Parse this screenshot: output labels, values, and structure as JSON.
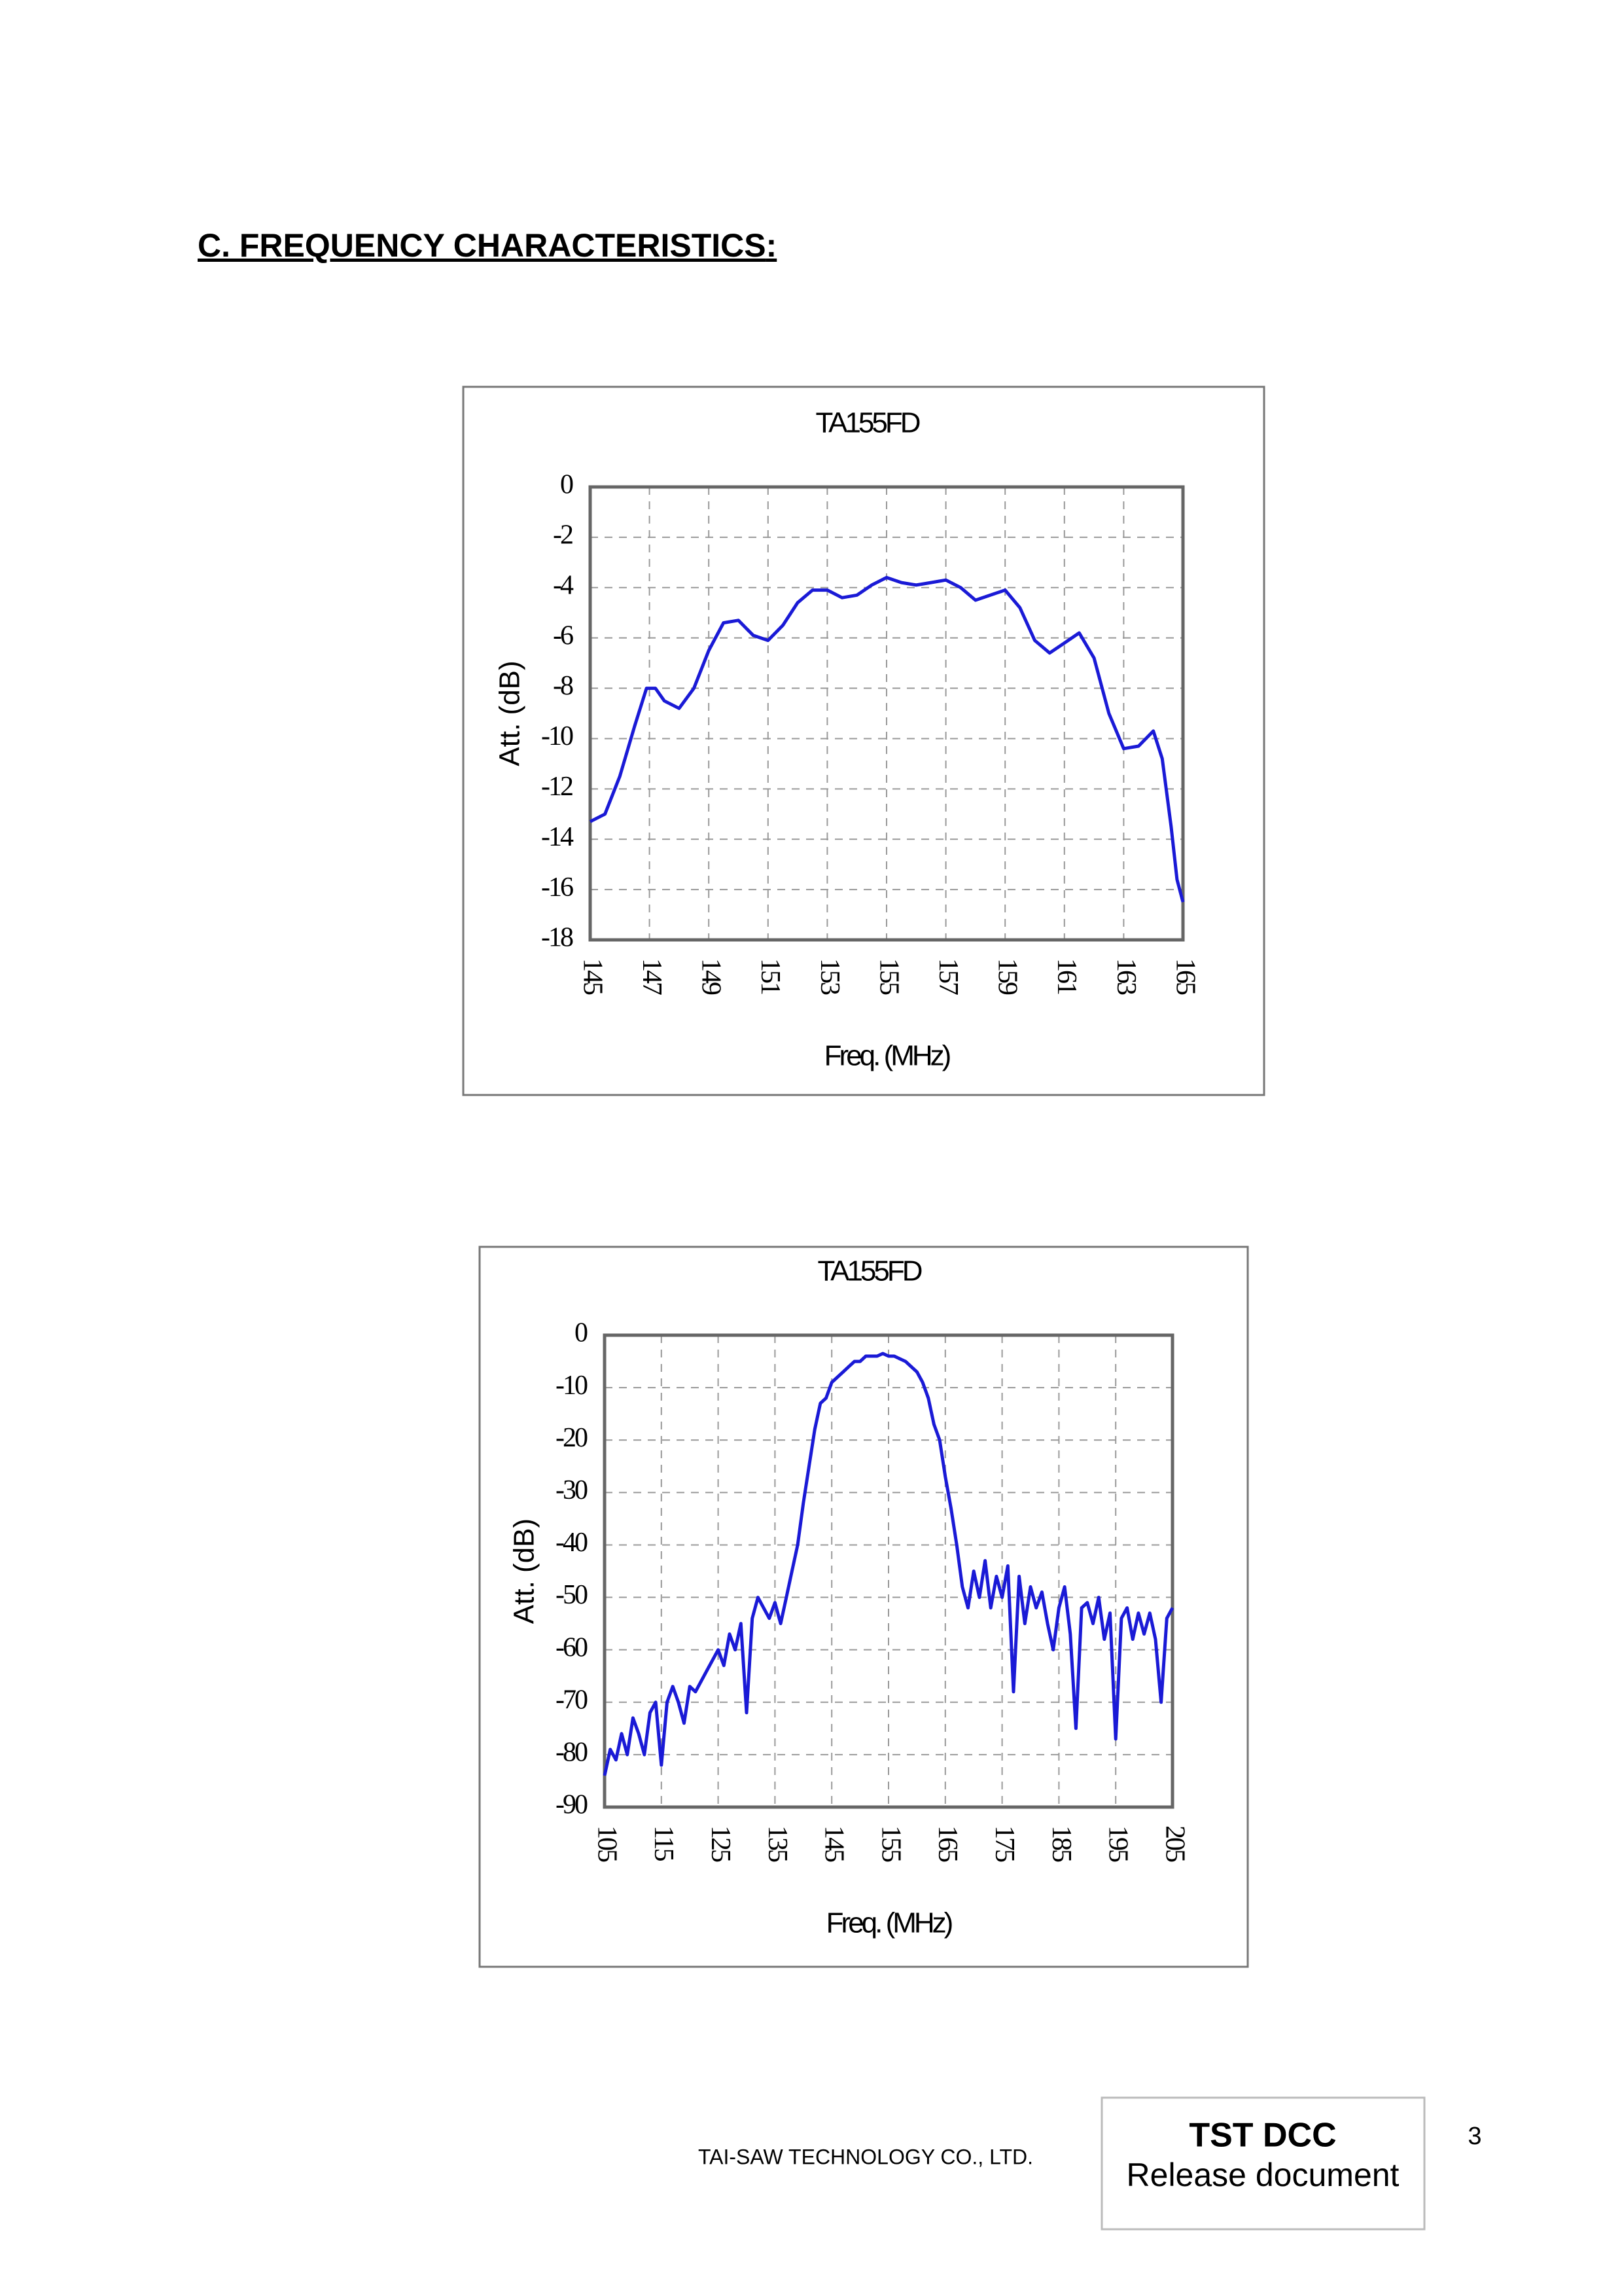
{
  "header": {
    "title": "C. FREQUENCY CHARACTERISTICS",
    "colon": ":"
  },
  "chart_data": [
    {
      "type": "line",
      "title": "TA155FD",
      "x_label": "Freq. (MHz)",
      "y_label": "Att. (dB)",
      "xlim": [
        145,
        165
      ],
      "xticks": [
        145,
        147,
        149,
        151,
        153,
        155,
        157,
        159,
        161,
        163,
        165
      ],
      "ylim": [
        -18,
        0
      ],
      "yticks": [
        0,
        -2,
        -4,
        -6,
        -8,
        -10,
        -12,
        -14,
        -16,
        -18
      ],
      "grid": true,
      "series": [
        {
          "color": "#1a1ad6",
          "x": [
            145,
            145.5,
            146,
            146.5,
            146.9,
            147.2,
            147.5,
            148,
            148.5,
            149,
            149.5,
            150,
            150.5,
            151,
            151.5,
            152,
            152.5,
            153,
            153.5,
            154,
            154.5,
            155,
            155.5,
            156,
            156.5,
            157,
            157.5,
            158,
            158.5,
            159,
            159.5,
            160,
            160.5,
            161,
            161.5,
            162,
            162.5,
            163,
            163.5,
            164,
            164.3,
            164.6,
            164.8,
            165
          ],
          "values": [
            -13.3,
            -13,
            -11.5,
            -9.5,
            -8,
            -8,
            -8.5,
            -8.8,
            -8,
            -6.5,
            -5.4,
            -5.3,
            -5.9,
            -6.1,
            -5.5,
            -4.6,
            -4.1,
            -4.1,
            -4.4,
            -4.3,
            -3.9,
            -3.6,
            -3.8,
            -3.9,
            -3.8,
            -3.7,
            -4,
            -4.5,
            -4.3,
            -4.1,
            -4.8,
            -6.1,
            -6.6,
            -6.2,
            -5.8,
            -6.8,
            -9,
            -10.4,
            -10.3,
            -9.7,
            -10.8,
            -13.5,
            -15.6,
            -16.5
          ]
        }
      ]
    },
    {
      "type": "line",
      "title": "TA155FD",
      "x_label": "Freq. (MHz)",
      "y_label": "Att. (dB)",
      "xlim": [
        105,
        205
      ],
      "xticks": [
        105,
        115,
        125,
        135,
        145,
        155,
        165,
        175,
        185,
        195,
        205
      ],
      "ylim": [
        -90,
        0
      ],
      "yticks": [
        0,
        -10,
        -20,
        -30,
        -40,
        -50,
        -60,
        -70,
        -80,
        -90
      ],
      "grid": true,
      "series": [
        {
          "color": "#1a1ad6",
          "x": [
            105,
            106,
            107,
            108,
            109,
            110,
            111,
            112,
            113,
            114,
            115,
            116,
            117,
            118,
            119,
            120,
            121,
            122,
            123,
            124,
            125,
            126,
            127,
            128,
            129,
            130,
            131,
            132,
            133,
            134,
            135,
            136,
            137,
            138,
            139,
            140,
            141,
            142,
            143,
            144,
            145,
            146,
            147,
            148,
            149,
            150,
            151,
            152,
            153,
            154,
            155,
            156,
            157,
            158,
            159,
            160,
            161,
            162,
            163,
            164,
            165,
            166,
            167,
            168,
            169,
            170,
            171,
            172,
            173,
            174,
            175,
            176,
            177,
            178,
            179,
            180,
            181,
            182,
            183,
            184,
            185,
            186,
            187,
            188,
            189,
            190,
            191,
            192,
            193,
            194,
            195,
            196,
            197,
            198,
            199,
            200,
            201,
            202,
            203,
            204,
            205
          ],
          "values": [
            -84,
            -79,
            -81,
            -76,
            -80,
            -73,
            -76,
            -80,
            -72,
            -70,
            -82,
            -70,
            -67,
            -70,
            -74,
            -67,
            -68,
            -66,
            -64,
            -62,
            -60,
            -63,
            -57,
            -60,
            -55,
            -72,
            -54,
            -50,
            -52,
            -54,
            -51,
            -55,
            -50,
            -45,
            -40,
            -32,
            -25,
            -18,
            -13,
            -12,
            -9,
            -8,
            -7,
            -6,
            -5,
            -5,
            -4,
            -4,
            -4,
            -3.5,
            -4,
            -4,
            -4.5,
            -5,
            -6,
            -7,
            -9,
            -12,
            -17,
            -20,
            -27,
            -33,
            -40,
            -48,
            -52,
            -45,
            -50,
            -43,
            -52,
            -46,
            -50,
            -44,
            -68,
            -46,
            -55,
            -48,
            -52,
            -49,
            -55,
            -60,
            -52,
            -48,
            -57,
            -75,
            -52,
            -51,
            -55,
            -50,
            -58,
            -53,
            -77,
            -54,
            -52,
            -58,
            -53,
            -57,
            -53,
            -58,
            -70,
            -54,
            -52
          ]
        }
      ]
    }
  ],
  "footer": {
    "company": "TAI-SAW TECHNOLOGY CO., LTD.",
    "stamp_title": "TST DCC",
    "stamp_text": "Release document",
    "page": "3"
  }
}
